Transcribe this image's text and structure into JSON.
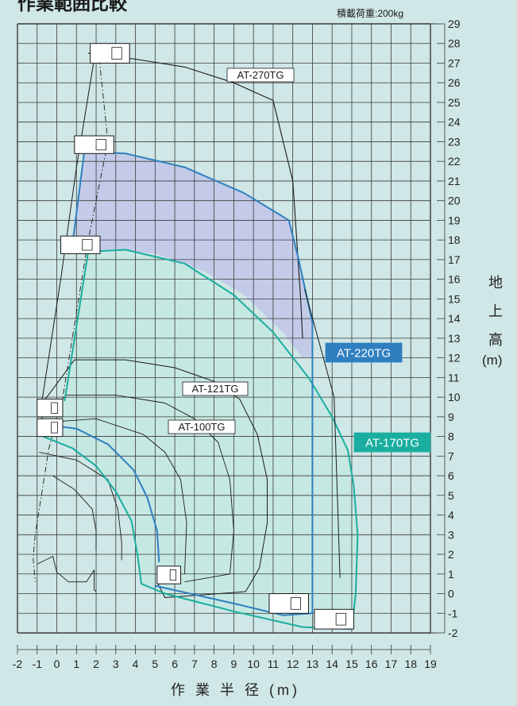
{
  "header": {
    "title": "作業範囲比較",
    "note": "積載荷重:200kg"
  },
  "axes": {
    "y_label_chars": [
      "地",
      "上",
      "高"
    ],
    "y_unit": "(m)",
    "x_label": "作 業 半 径 (m)"
  },
  "models": {
    "at270": "AT-270TG",
    "at220": "AT-220TG",
    "at170": "AT-170TG",
    "at121": "AT-121TG",
    "at100": "AT-100TG"
  },
  "colors": {
    "background": "#cfe7e6",
    "grid": "#3a3a3a",
    "at220": "#2f7fc0",
    "at220_fill": "#c3cbe8",
    "at170": "#1aaea0",
    "at170_fill": "#c6e8e3",
    "outline": "#1a1a1a"
  },
  "chart_data": {
    "type": "diagram",
    "xlabel": "作 業 半 径 (m)",
    "ylabel": "地 上 高 (m)",
    "xlim": [
      -2,
      19
    ],
    "ylim": [
      -2,
      29
    ],
    "x_ticks": [
      -2,
      -1,
      0,
      1,
      2,
      3,
      4,
      5,
      6,
      7,
      8,
      9,
      10,
      11,
      12,
      13,
      14,
      15,
      16,
      17,
      18,
      19
    ],
    "y_ticks": [
      -2,
      -1,
      0,
      1,
      2,
      3,
      4,
      5,
      6,
      7,
      8,
      9,
      10,
      11,
      12,
      13,
      14,
      15,
      16,
      17,
      18,
      19,
      20,
      21,
      22,
      23,
      24,
      25,
      26,
      27,
      28,
      29
    ],
    "grid": true,
    "series": [
      {
        "name": "AT-270TG",
        "max_height_m": 27,
        "max_reach_m": 12.3,
        "style": "outline"
      },
      {
        "name": "AT-220TG",
        "max_height_m": 22.5,
        "max_reach_m": 13,
        "style": "filled-blue"
      },
      {
        "name": "AT-170TG",
        "max_height_m": 17.5,
        "max_reach_m": 15.2,
        "style": "filled-teal"
      },
      {
        "name": "AT-121TG",
        "max_height_m": 12,
        "max_reach_m": 10.5,
        "style": "outline"
      },
      {
        "name": "AT-100TG",
        "max_height_m": 9.5,
        "max_reach_m": 7.5,
        "style": "outline"
      }
    ]
  }
}
